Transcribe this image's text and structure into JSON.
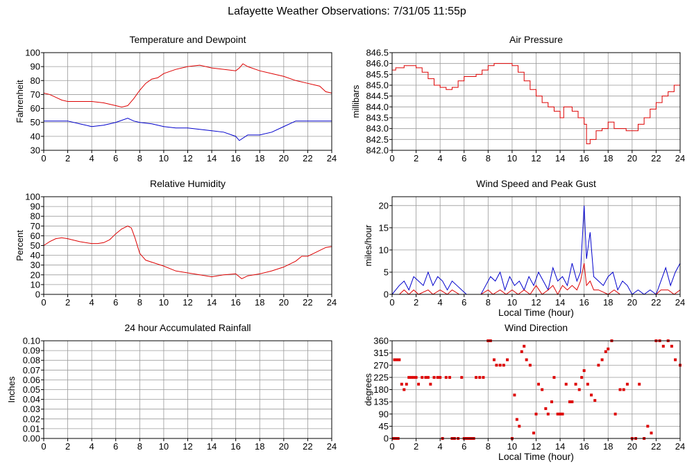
{
  "page": {
    "title": "Lafayette Weather Observations: 7/31/05 11:55p"
  },
  "chart_data": [
    {
      "id": "temp",
      "type": "line",
      "title": "Temperature and Dewpoint",
      "xlabel": "",
      "ylabel": "Fahrenheit",
      "xlim": [
        0,
        24
      ],
      "ylim": [
        30,
        100
      ],
      "xticks": [
        0,
        2,
        4,
        6,
        8,
        10,
        12,
        14,
        16,
        18,
        20,
        22,
        24
      ],
      "yticks": [
        30,
        40,
        50,
        60,
        70,
        80,
        90,
        100
      ],
      "ytick_labels": [
        "30",
        "40",
        "50",
        "60",
        "70",
        "80",
        "90",
        "100"
      ],
      "grid": true,
      "series": [
        {
          "color": "#dd0000",
          "step": false,
          "x": [
            0,
            0.5,
            1,
            1.5,
            2,
            3,
            4,
            5,
            6,
            6.5,
            7,
            7.5,
            8,
            8.5,
            9,
            9.5,
            10,
            11,
            12,
            13,
            14,
            15,
            16,
            16.3,
            16.6,
            17,
            18,
            19,
            20,
            21,
            22,
            22.5,
            23,
            23.5,
            24
          ],
          "y": [
            71,
            70,
            68,
            66,
            65,
            65,
            65,
            64,
            62,
            61,
            62,
            67,
            73,
            78,
            81,
            82,
            85,
            88,
            90,
            91,
            89,
            88,
            87,
            89,
            92,
            90,
            87,
            85,
            83,
            80,
            78,
            77,
            76,
            72,
            71
          ]
        },
        {
          "color": "#0000cc",
          "step": false,
          "x": [
            0,
            1,
            2,
            3,
            4,
            5,
            6,
            7,
            7.5,
            8,
            9,
            10,
            11,
            12,
            13,
            14,
            15,
            16,
            16.3,
            17,
            18,
            19,
            20,
            21,
            22,
            23,
            24
          ],
          "y": [
            51,
            51,
            51,
            49,
            47,
            48,
            50,
            53,
            51,
            50,
            49,
            47,
            46,
            46,
            45,
            44,
            43,
            40,
            37,
            41,
            41,
            43,
            47,
            51,
            51,
            51,
            51
          ]
        }
      ]
    },
    {
      "id": "pressure",
      "type": "line",
      "title": "Air Pressure",
      "xlabel": "",
      "ylabel": "millibars",
      "xlim": [
        0,
        24
      ],
      "ylim": [
        842.0,
        846.5
      ],
      "xticks": [
        0,
        2,
        4,
        6,
        8,
        10,
        12,
        14,
        16,
        18,
        20,
        22,
        24
      ],
      "yticks": [
        842.0,
        842.5,
        843.0,
        843.5,
        844.0,
        844.5,
        845.0,
        845.5,
        846.0,
        846.5
      ],
      "ytick_labels": [
        "842.0",
        "842.5",
        "843.0",
        "843.5",
        "844.0",
        "844.5",
        "845.0",
        "845.5",
        "846.0",
        "846.5"
      ],
      "grid": true,
      "series": [
        {
          "color": "#dd0000",
          "step": true,
          "x": [
            0,
            0.3,
            1,
            2,
            2.5,
            3,
            3.5,
            4,
            4.5,
            5,
            5.5,
            6,
            7,
            7.5,
            8,
            8.5,
            9,
            10,
            10.5,
            11,
            11.5,
            12,
            12.5,
            13,
            13.5,
            14,
            14.3,
            15,
            15.5,
            16,
            16.2,
            16.5,
            17,
            17.5,
            18,
            18.5,
            19,
            19.5,
            20,
            20.5,
            21,
            21.5,
            22,
            22.5,
            23,
            23.5,
            24
          ],
          "y": [
            845.7,
            845.8,
            845.9,
            845.8,
            845.6,
            845.3,
            845.0,
            844.9,
            844.8,
            844.9,
            845.2,
            845.4,
            845.5,
            845.7,
            845.9,
            846.0,
            846.0,
            845.9,
            845.6,
            845.2,
            844.8,
            844.5,
            844.2,
            844.0,
            843.8,
            843.5,
            844.0,
            843.8,
            843.5,
            843.2,
            842.3,
            842.5,
            842.9,
            843.0,
            843.3,
            843.0,
            843.0,
            842.9,
            842.9,
            843.2,
            843.5,
            843.9,
            844.2,
            844.5,
            844.7,
            845.0,
            845.0
          ]
        }
      ]
    },
    {
      "id": "humidity",
      "type": "line",
      "title": "Relative Humidity",
      "xlabel": "",
      "ylabel": "Percent",
      "xlim": [
        0,
        24
      ],
      "ylim": [
        0,
        100
      ],
      "xticks": [
        0,
        2,
        4,
        6,
        8,
        10,
        12,
        14,
        16,
        18,
        20,
        22,
        24
      ],
      "yticks": [
        0,
        10,
        20,
        30,
        40,
        50,
        60,
        70,
        80,
        90,
        100
      ],
      "ytick_labels": [
        "0",
        "10",
        "20",
        "30",
        "40",
        "50",
        "60",
        "70",
        "80",
        "90",
        "100"
      ],
      "grid": true,
      "series": [
        {
          "color": "#dd0000",
          "step": false,
          "x": [
            0,
            0.5,
            1,
            1.5,
            2,
            3,
            4,
            4.5,
            5,
            5.5,
            6,
            6.5,
            7,
            7.3,
            7.6,
            8,
            8.5,
            9,
            10,
            11,
            12,
            13,
            14,
            15,
            16,
            16.5,
            17,
            18,
            19,
            20,
            20.5,
            21,
            21.5,
            22,
            22.5,
            23,
            23.5,
            24
          ],
          "y": [
            50,
            54,
            57,
            58,
            57,
            54,
            52,
            52,
            53,
            56,
            62,
            67,
            70,
            68,
            58,
            42,
            35,
            33,
            29,
            24,
            22,
            20,
            18,
            20,
            21,
            16,
            19,
            21,
            24,
            28,
            31,
            34,
            39,
            39,
            42,
            45,
            48,
            49
          ]
        }
      ]
    },
    {
      "id": "wind",
      "type": "line",
      "title": "Wind Speed and Peak Gust",
      "xlabel": "Local Time (hour)",
      "ylabel": "miles/hour",
      "xlim": [
        0,
        24
      ],
      "ylim": [
        0,
        22
      ],
      "xticks": [
        0,
        2,
        4,
        6,
        8,
        10,
        12,
        14,
        16,
        18,
        20,
        22,
        24
      ],
      "yticks": [
        0,
        5,
        10,
        15,
        20
      ],
      "ytick_labels": [
        "0",
        "5",
        "10",
        "15",
        "20"
      ],
      "grid": true,
      "series": [
        {
          "color": "#0000cc",
          "step": false,
          "x": [
            0,
            0.3,
            0.6,
            1,
            1.4,
            1.8,
            2.2,
            2.6,
            3,
            3.4,
            3.8,
            4.2,
            4.6,
            5,
            5.4,
            5.8,
            6.2,
            7.4,
            7.8,
            8.2,
            8.6,
            9,
            9.4,
            9.8,
            10.2,
            10.6,
            11,
            11.4,
            11.8,
            12.2,
            12.6,
            13,
            13.4,
            13.8,
            14.2,
            14.6,
            15,
            15.4,
            15.7,
            16,
            16.2,
            16.5,
            16.8,
            17.2,
            17.6,
            18,
            18.4,
            18.8,
            19.2,
            19.6,
            20,
            20.5,
            21,
            21.5,
            22,
            22.4,
            22.8,
            23.2,
            23.6,
            24
          ],
          "y": [
            0,
            1,
            2,
            3,
            1,
            4,
            3,
            2,
            5,
            2,
            4,
            3,
            1,
            3,
            2,
            1,
            0,
            0,
            2,
            4,
            3,
            5,
            1,
            4,
            2,
            3,
            1,
            4,
            2,
            5,
            3,
            1,
            6,
            3,
            4,
            2,
            7,
            3,
            5,
            20,
            8,
            14,
            4,
            3,
            2,
            4,
            5,
            1,
            3,
            2,
            0,
            1,
            0,
            1,
            0,
            3,
            6,
            2,
            5,
            7
          ]
        },
        {
          "color": "#dd0000",
          "step": false,
          "x": [
            0,
            0.6,
            1,
            1.4,
            1.8,
            2.2,
            3,
            3.4,
            4,
            4.6,
            5,
            5.6,
            6.2,
            7.4,
            8,
            8.4,
            9,
            9.5,
            10,
            10.5,
            11,
            11.5,
            12,
            12.5,
            13,
            13.4,
            13.8,
            14.2,
            14.6,
            15,
            15.4,
            15.7,
            16,
            16.2,
            16.5,
            16.8,
            17.2,
            18,
            18.5,
            19,
            20,
            21,
            22,
            22.4,
            23,
            23.5,
            24
          ],
          "y": [
            0,
            0,
            1,
            0,
            1,
            0,
            1,
            0,
            1,
            0,
            1,
            0,
            0,
            0,
            1,
            0,
            1,
            0,
            1,
            0,
            1,
            0,
            2,
            0,
            1,
            2,
            0,
            2,
            1,
            2,
            1,
            3,
            7,
            2,
            3,
            1,
            1,
            0,
            1,
            0,
            0,
            0,
            0,
            1,
            1,
            0,
            1
          ]
        }
      ]
    },
    {
      "id": "rain",
      "type": "line",
      "title": "24 hour Accumulated Rainfall",
      "xlabel": "",
      "ylabel": "Inches",
      "xlim": [
        0,
        24
      ],
      "ylim": [
        0,
        0.1
      ],
      "xticks": [
        0,
        2,
        4,
        6,
        8,
        10,
        12,
        14,
        16,
        18,
        20,
        22,
        24
      ],
      "yticks": [
        0,
        0.01,
        0.02,
        0.03,
        0.04,
        0.05,
        0.06,
        0.07,
        0.08,
        0.09,
        0.1
      ],
      "ytick_labels": [
        "0.00",
        "0.01",
        "0.02",
        "0.03",
        "0.04",
        "0.05",
        "0.06",
        "0.07",
        "0.08",
        "0.09",
        "0.10"
      ],
      "grid": true,
      "series": [
        {
          "color": "#dd0000",
          "step": false,
          "x": [
            0,
            24
          ],
          "y": [
            0,
            0
          ]
        }
      ]
    },
    {
      "id": "direction",
      "type": "scatter",
      "title": "Wind Direction",
      "xlabel": "Local Time (hour)",
      "ylabel": "degrees",
      "xlim": [
        0,
        24
      ],
      "ylim": [
        0,
        360
      ],
      "xticks": [
        0,
        2,
        4,
        6,
        8,
        10,
        12,
        14,
        16,
        18,
        20,
        22,
        24
      ],
      "yticks": [
        0,
        45,
        90,
        135,
        180,
        225,
        270,
        315,
        360
      ],
      "ytick_labels": [
        "0",
        "45",
        "90",
        "135",
        "180",
        "225",
        "270",
        "315",
        "360"
      ],
      "grid": true,
      "series": [
        {
          "color": "#dd0000",
          "x": [
            0.1,
            0.2,
            0.3,
            0.4,
            0.5,
            0.6,
            0.8,
            1.0,
            1.2,
            1.4,
            1.6,
            1.8,
            2.0,
            2.2,
            2.5,
            2.8,
            3.0,
            3.2,
            3.5,
            3.8,
            4.0,
            4.2,
            4.5,
            4.8,
            5.0,
            5.2,
            5.5,
            5.8,
            6.0,
            6.2,
            6.4,
            6.6,
            6.8,
            7.0,
            7.3,
            7.6,
            8.0,
            8.2,
            8.5,
            8.7,
            9.0,
            9.3,
            9.6,
            10.0,
            10.2,
            10.4,
            10.6,
            10.8,
            11.0,
            11.2,
            11.5,
            11.8,
            12.0,
            12.2,
            12.5,
            12.8,
            13.0,
            13.3,
            13.5,
            13.8,
            14.0,
            14.2,
            14.5,
            14.8,
            15.0,
            15.3,
            15.6,
            15.8,
            16.0,
            16.3,
            16.6,
            16.9,
            17.2,
            17.5,
            17.8,
            18.0,
            18.3,
            18.6,
            19.0,
            19.3,
            19.6,
            20.0,
            20.3,
            20.6,
            21.0,
            21.3,
            21.6,
            22.0,
            22.3,
            22.6,
            23.0,
            23.3,
            23.6,
            24.0
          ],
          "y": [
            0,
            290,
            0,
            290,
            0,
            290,
            200,
            180,
            200,
            225,
            225,
            225,
            225,
            200,
            225,
            225,
            225,
            200,
            225,
            225,
            225,
            0,
            225,
            225,
            0,
            0,
            0,
            225,
            0,
            0,
            0,
            0,
            0,
            225,
            225,
            225,
            370,
            370,
            290,
            270,
            270,
            270,
            290,
            0,
            160,
            70,
            45,
            320,
            340,
            290,
            270,
            20,
            90,
            200,
            180,
            110,
            90,
            135,
            225,
            90,
            90,
            90,
            200,
            135,
            135,
            200,
            180,
            225,
            250,
            200,
            160,
            140,
            270,
            290,
            320,
            330,
            370,
            90,
            180,
            180,
            200,
            0,
            0,
            200,
            0,
            45,
            20,
            370,
            370,
            340,
            370,
            340,
            290,
            270
          ]
        }
      ]
    }
  ]
}
